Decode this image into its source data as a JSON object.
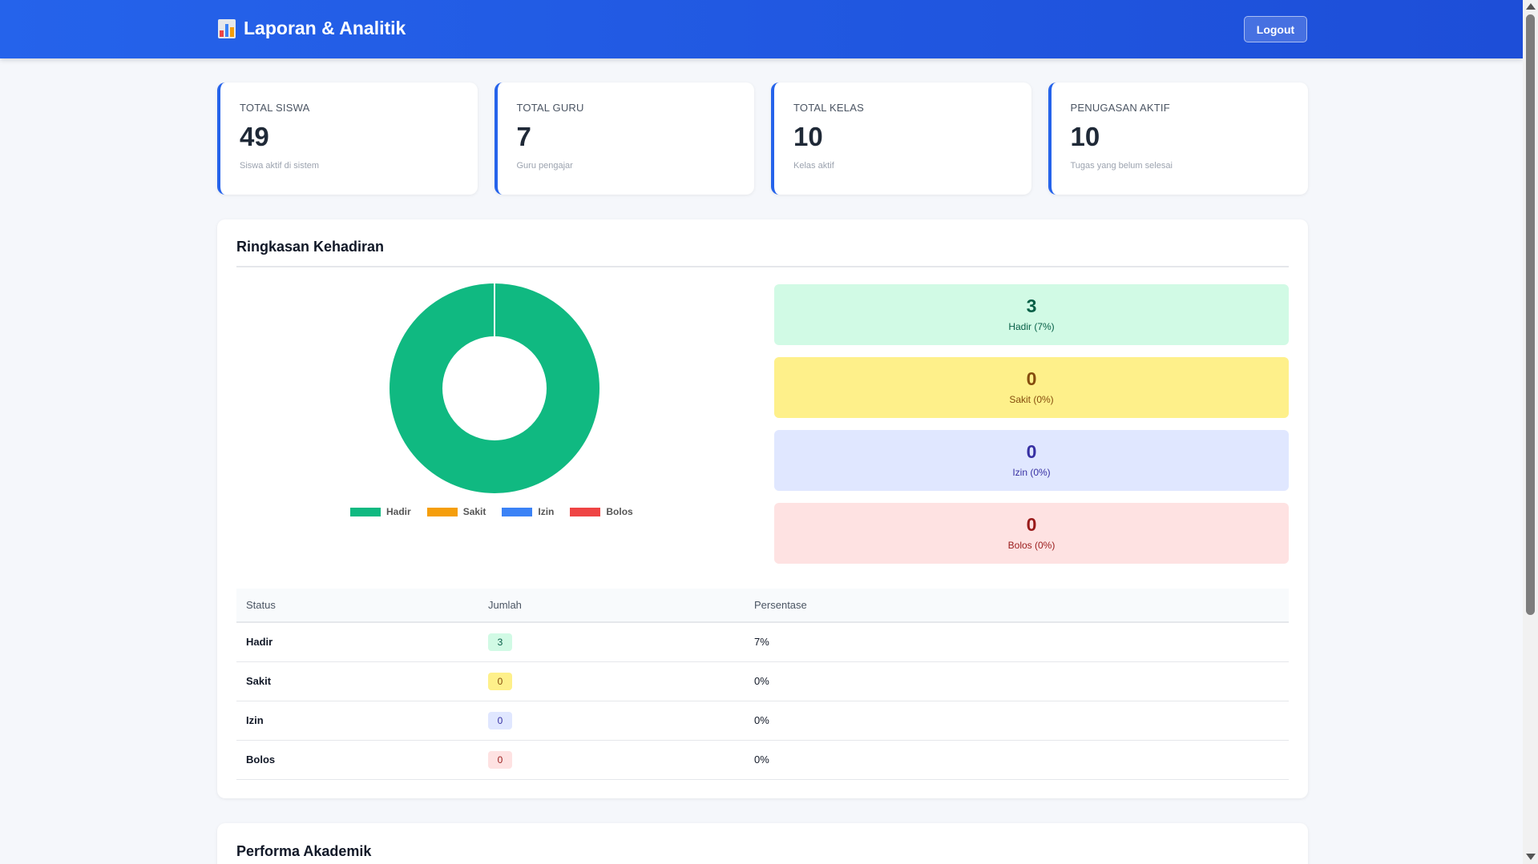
{
  "header": {
    "title": "Laporan & Analitik",
    "logout_label": "Logout",
    "icon": "bar-chart-icon"
  },
  "stats": [
    {
      "label": "TOTAL SISWA",
      "value": "49",
      "sub": "Siswa aktif di sistem"
    },
    {
      "label": "TOTAL GURU",
      "value": "7",
      "sub": "Guru pengajar"
    },
    {
      "label": "TOTAL KELAS",
      "value": "10",
      "sub": "Kelas aktif"
    },
    {
      "label": "PENUGASAN AKTIF",
      "value": "10",
      "sub": "Tugas yang belum selesai"
    }
  ],
  "attendance": {
    "title": "Ringkasan Kehadiran",
    "summary": [
      {
        "value": "3",
        "label": "Hadir (7%)",
        "bg": "#d1fae5",
        "fg": "#065f46"
      },
      {
        "value": "0",
        "label": "Sakit (0%)",
        "bg": "#fef08a",
        "fg": "#854d0e"
      },
      {
        "value": "0",
        "label": "Izin (0%)",
        "bg": "#e0e7ff",
        "fg": "#3730a3"
      },
      {
        "value": "0",
        "label": "Bolos (0%)",
        "bg": "#fee2e2",
        "fg": "#991b1b"
      }
    ],
    "table": {
      "headers": [
        "Status",
        "Jumlah",
        "Persentase"
      ],
      "rows": [
        {
          "status": "Hadir",
          "count": "3",
          "percent": "7%"
        },
        {
          "status": "Sakit",
          "count": "0",
          "percent": "0%"
        },
        {
          "status": "Izin",
          "count": "0",
          "percent": "0%"
        },
        {
          "status": "Bolos",
          "count": "0",
          "percent": "0%"
        }
      ]
    }
  },
  "chart_data": {
    "type": "pie",
    "categories": [
      "Hadir",
      "Sakit",
      "Izin",
      "Bolos"
    ],
    "values": [
      3,
      0,
      0,
      0
    ],
    "colors": [
      "#10b981",
      "#f59e0b",
      "#3b82f6",
      "#ef4444"
    ],
    "legend": "bottom",
    "donut": true
  },
  "academic": {
    "title": "Performa Akademik"
  }
}
